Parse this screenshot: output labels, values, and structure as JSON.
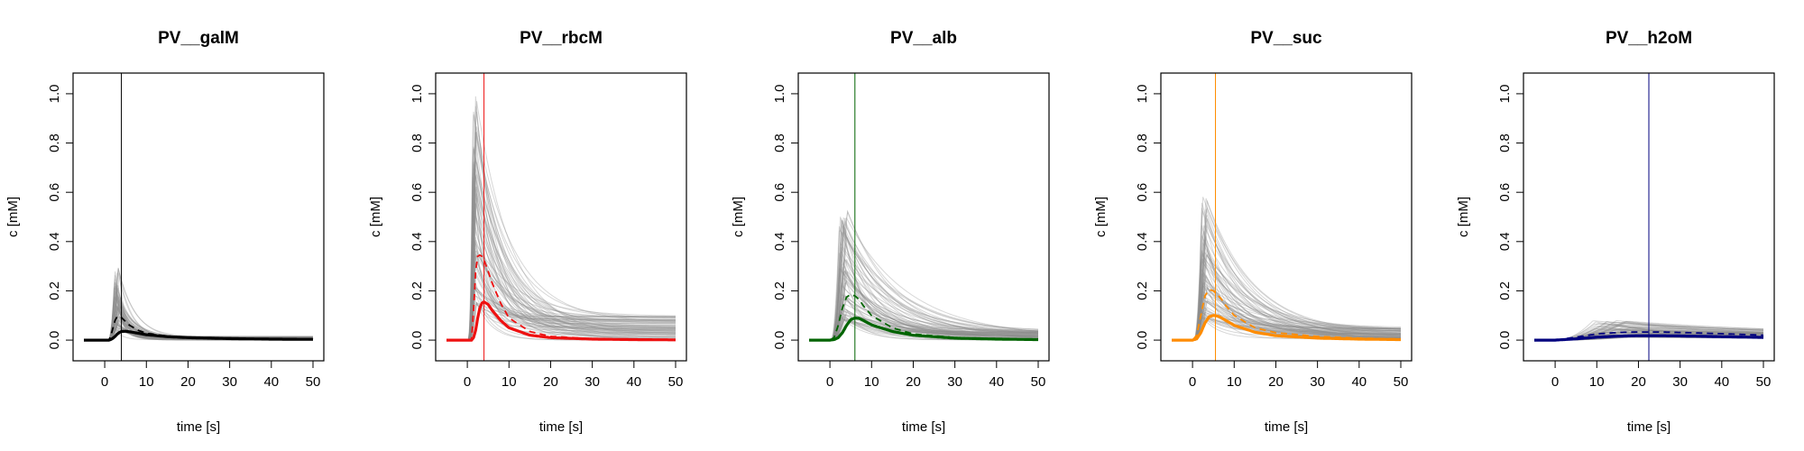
{
  "chart_data": [
    {
      "type": "line",
      "title": "PV__galM",
      "xlabel": "time [s]",
      "ylabel": "c [mM]",
      "xlim": [
        -5,
        50
      ],
      "ylim": [
        0,
        1
      ],
      "xticks": [
        "0",
        "10",
        "20",
        "30",
        "40",
        "50"
      ],
      "yticks": [
        "0.0",
        "0.2",
        "0.4",
        "0.6",
        "0.8",
        "1.0"
      ],
      "color": "#000000",
      "vline": 4,
      "grid": false,
      "series": [
        {
          "style": "solid-thick",
          "x": [
            -5,
            0,
            1,
            1.5,
            2,
            2.5,
            3,
            3.5,
            4,
            5,
            6,
            8,
            10,
            15,
            20,
            30,
            40,
            50
          ],
          "values": [
            0,
            0,
            0,
            0.003,
            0.008,
            0.015,
            0.024,
            0.031,
            0.035,
            0.036,
            0.034,
            0.028,
            0.022,
            0.014,
            0.01,
            0.006,
            0.004,
            0.003
          ]
        },
        {
          "style": "dashed",
          "x": [
            -5,
            0,
            1,
            1.5,
            2,
            2.5,
            3,
            3.5,
            4,
            5,
            6,
            8,
            10,
            15,
            20,
            30,
            40,
            50
          ],
          "values": [
            0,
            0,
            0,
            0.02,
            0.05,
            0.08,
            0.096,
            0.098,
            0.092,
            0.075,
            0.06,
            0.04,
            0.028,
            0.016,
            0.011,
            0.007,
            0.004,
            0.003
          ]
        },
        {
          "style": "samples",
          "peak_max": 0.3,
          "peak_t": 2.5,
          "decay_s": 2.5,
          "tail": 0.015,
          "onset": 1,
          "rise": 1.5
        }
      ]
    },
    {
      "type": "line",
      "title": "PV__rbcM",
      "xlabel": "time [s]",
      "ylabel": "c [mM]",
      "xlim": [
        -5,
        50
      ],
      "ylim": [
        0,
        1
      ],
      "xticks": [
        "0",
        "10",
        "20",
        "30",
        "40",
        "50"
      ],
      "yticks": [
        "0.0",
        "0.2",
        "0.4",
        "0.6",
        "0.8",
        "1.0"
      ],
      "color": "#ee1111",
      "vline": 4,
      "grid": false,
      "series": [
        {
          "style": "solid-thick",
          "x": [
            -5,
            0,
            1,
            1.5,
            2,
            2.5,
            3,
            3.5,
            4,
            5,
            6,
            8,
            10,
            15,
            20,
            30,
            40,
            50
          ],
          "values": [
            0,
            0,
            0,
            0.01,
            0.04,
            0.09,
            0.13,
            0.15,
            0.155,
            0.145,
            0.12,
            0.08,
            0.05,
            0.02,
            0.01,
            0.004,
            0.002,
            0.001
          ]
        },
        {
          "style": "dashed",
          "x": [
            -5,
            0,
            1,
            1.5,
            2,
            2.5,
            3,
            3.5,
            4,
            5,
            6,
            8,
            10,
            15,
            20,
            30,
            40,
            50
          ],
          "values": [
            0,
            0,
            0,
            0.12,
            0.28,
            0.34,
            0.345,
            0.34,
            0.325,
            0.28,
            0.23,
            0.15,
            0.09,
            0.035,
            0.015,
            0.006,
            0.003,
            0.002
          ]
        },
        {
          "style": "samples",
          "peak_max": 1.0,
          "peak_t": 1.5,
          "decay_s": 5,
          "tail": 0.1,
          "onset": 0.5,
          "rise": 1
        }
      ]
    },
    {
      "type": "line",
      "title": "PV__alb",
      "xlabel": "time [s]",
      "ylabel": "c [mM]",
      "xlim": [
        -5,
        50
      ],
      "ylim": [
        0,
        1
      ],
      "xticks": [
        "0",
        "10",
        "20",
        "30",
        "40",
        "50"
      ],
      "yticks": [
        "0.0",
        "0.2",
        "0.4",
        "0.6",
        "0.8",
        "1.0"
      ],
      "color": "#006400",
      "vline": 6,
      "grid": false,
      "series": [
        {
          "style": "solid-thick",
          "x": [
            -5,
            0,
            1,
            2,
            3,
            4,
            5,
            6,
            7,
            8,
            10,
            15,
            20,
            30,
            40,
            50
          ],
          "values": [
            0,
            0,
            0.002,
            0.01,
            0.03,
            0.06,
            0.083,
            0.09,
            0.088,
            0.08,
            0.062,
            0.035,
            0.02,
            0.008,
            0.004,
            0.002
          ]
        },
        {
          "style": "dashed",
          "x": [
            -5,
            0,
            1,
            2,
            3,
            4,
            5,
            6,
            7,
            8,
            10,
            15,
            20,
            30,
            40,
            50
          ],
          "values": [
            0,
            0,
            0.01,
            0.06,
            0.13,
            0.175,
            0.185,
            0.18,
            0.165,
            0.14,
            0.1,
            0.05,
            0.025,
            0.01,
            0.005,
            0.003
          ]
        },
        {
          "style": "samples",
          "peak_max": 0.55,
          "peak_t": 2.8,
          "decay_s": 8,
          "tail": 0.04,
          "onset": 0.5,
          "rise": 2
        }
      ]
    },
    {
      "type": "line",
      "title": "PV__suc",
      "xlabel": "time [s]",
      "ylabel": "c [mM]",
      "xlim": [
        -5,
        50
      ],
      "ylim": [
        0,
        1
      ],
      "xticks": [
        "0",
        "10",
        "20",
        "30",
        "40",
        "50"
      ],
      "yticks": [
        "0.0",
        "0.2",
        "0.4",
        "0.6",
        "0.8",
        "1.0"
      ],
      "color": "#ff8c00",
      "vline": 5.5,
      "grid": false,
      "series": [
        {
          "style": "solid-thick",
          "x": [
            -5,
            0,
            1,
            2,
            3,
            4,
            5,
            6,
            7,
            8,
            10,
            15,
            20,
            30,
            40,
            50
          ],
          "values": [
            0,
            0,
            0.005,
            0.03,
            0.07,
            0.095,
            0.1,
            0.098,
            0.09,
            0.08,
            0.06,
            0.032,
            0.018,
            0.008,
            0.004,
            0.002
          ]
        },
        {
          "style": "dashed",
          "x": [
            -5,
            0,
            1,
            2,
            3,
            4,
            5,
            6,
            7,
            8,
            10,
            15,
            20,
            30,
            40,
            50
          ],
          "values": [
            0,
            0,
            0.02,
            0.1,
            0.18,
            0.205,
            0.2,
            0.185,
            0.165,
            0.14,
            0.1,
            0.05,
            0.03,
            0.015,
            0.008,
            0.004
          ]
        },
        {
          "style": "samples",
          "peak_max": 0.6,
          "peak_t": 2.5,
          "decay_s": 7,
          "tail": 0.05,
          "onset": 0.5,
          "rise": 1.5
        }
      ]
    },
    {
      "type": "line",
      "title": "PV__h2oM",
      "xlabel": "time [s]",
      "ylabel": "c [mM]",
      "xlim": [
        -5,
        50
      ],
      "ylim": [
        0,
        1
      ],
      "xticks": [
        "0",
        "10",
        "20",
        "30",
        "40",
        "50"
      ],
      "yticks": [
        "0.0",
        "0.2",
        "0.4",
        "0.6",
        "0.8",
        "1.0"
      ],
      "color": "#00007f",
      "vline": 22.5,
      "grid": false,
      "series": [
        {
          "style": "solid-thick",
          "x": [
            -5,
            0,
            5,
            10,
            15,
            20,
            25,
            30,
            40,
            50
          ],
          "values": [
            0,
            0,
            0.005,
            0.012,
            0.016,
            0.018,
            0.018,
            0.017,
            0.014,
            0.011
          ]
        },
        {
          "style": "dashed",
          "x": [
            -5,
            0,
            5,
            10,
            15,
            20,
            25,
            30,
            40,
            50
          ],
          "values": [
            0,
            0,
            0.012,
            0.025,
            0.031,
            0.033,
            0.033,
            0.031,
            0.026,
            0.02
          ]
        },
        {
          "style": "samples",
          "peak_max": 0.08,
          "peak_t": 12,
          "decay_s": 30,
          "tail": 0.03,
          "onset": 0,
          "rise": 10
        }
      ]
    }
  ]
}
